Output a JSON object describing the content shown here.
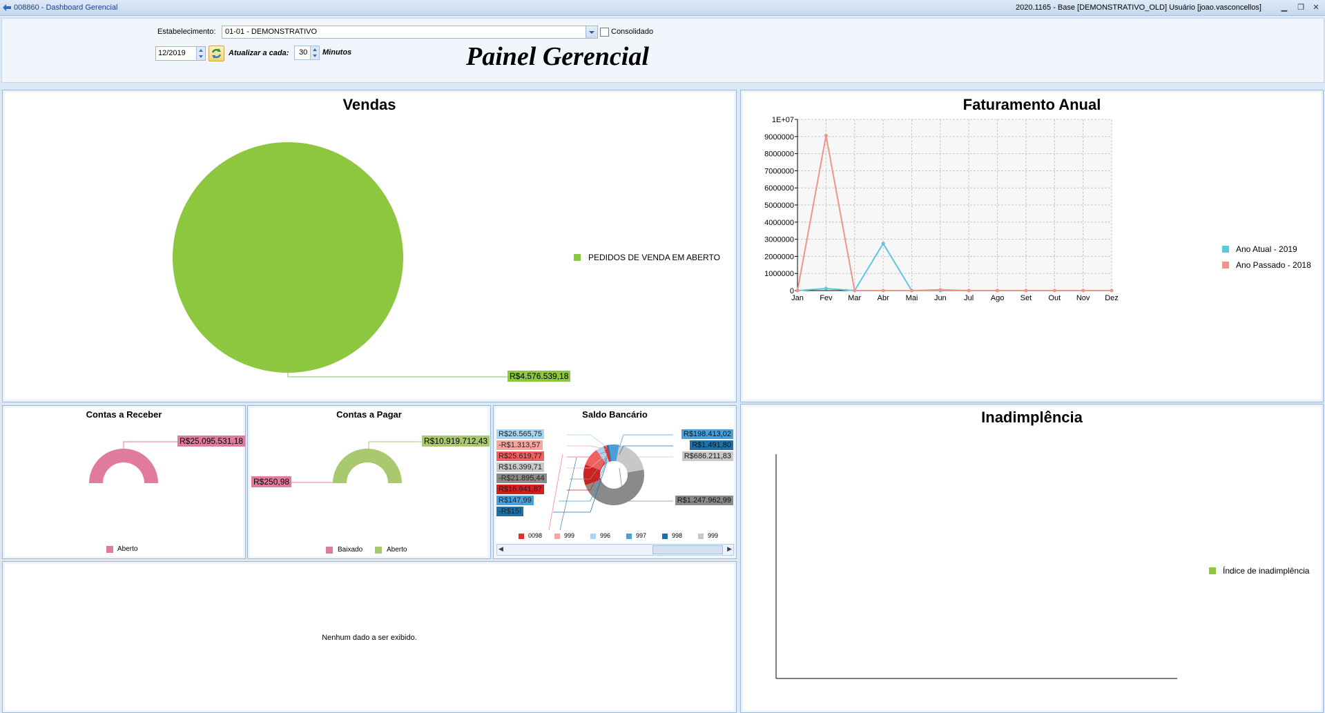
{
  "window": {
    "title": "008860 - Dashboard Gerencial",
    "info": "2020.1165 - Base [DEMONSTRATIVO_OLD] Usuário [joao.vasconcellos]"
  },
  "header": {
    "estabelecimento_label": "Estabelecimento:",
    "estabelecimento_value": "01-01 - DEMONSTRATIVO",
    "consolidado_label": "Consolidado",
    "period_value": "12/2019",
    "atualizar_label": "Atualizar a cada:",
    "atualizar_value": "30",
    "minutos_label": "Minutos",
    "painel_title": "Painel Gerencial"
  },
  "vendas": {
    "title": "Vendas",
    "legend": "PEDIDOS DE VENDA EM ABERTO",
    "color": "#8dc63f",
    "chart_data": {
      "type": "pie",
      "categories": [
        "PEDIDOS DE VENDA EM ABERTO"
      ],
      "values": [
        4576539.18
      ],
      "labels": [
        "R$4.576.539,18"
      ]
    }
  },
  "faturamento": {
    "title": "Faturamento Anual",
    "colors": {
      "atual": "#5bc8dc",
      "passado": "#f0948a"
    },
    "chart_data": {
      "type": "line",
      "categories": [
        "Jan",
        "Fev",
        "Mar",
        "Abr",
        "Mai",
        "Jun",
        "Jul",
        "Ago",
        "Set",
        "Out",
        "Nov",
        "Dez"
      ],
      "yticks": [
        "0",
        "1000000",
        "2000000",
        "3000000",
        "4000000",
        "5000000",
        "6000000",
        "7000000",
        "8000000",
        "9000000",
        "1E+07"
      ],
      "ylim": [
        0,
        10000000
      ],
      "series": [
        {
          "name": "Ano Atual - 2019",
          "values": [
            0,
            120000,
            0,
            2750000,
            0,
            0,
            0,
            0,
            0,
            0,
            0,
            0
          ]
        },
        {
          "name": "Ano Passado - 2018",
          "values": [
            0,
            9050000,
            0,
            0,
            0,
            50000,
            0,
            0,
            0,
            0,
            0,
            0
          ]
        }
      ],
      "grid": true,
      "legend": "right"
    }
  },
  "contas_receber": {
    "title": "Contas a Receber",
    "legend": "Aberto",
    "color": "#e07b9f",
    "chart_data": {
      "type": "pie",
      "categories": [
        "Aberto"
      ],
      "values": [
        25095531.18
      ],
      "labels": [
        "R$25.095.531,18"
      ]
    }
  },
  "contas_pagar": {
    "title": "Contas a Pagar",
    "legend": [
      "Baixado",
      "Aberto"
    ],
    "colors": [
      "#e07b9f",
      "#a8c96e"
    ],
    "chart_data": {
      "type": "pie",
      "categories": [
        "Baixado",
        "Aberto"
      ],
      "values": [
        250.98,
        10919712.43
      ],
      "labels": [
        "R$250,98",
        "R$10.919.712,43"
      ]
    }
  },
  "saldo_bancario": {
    "title": "Saldo Bancário",
    "left_labels": [
      {
        "text": "R$26.565,75",
        "color": "#a7d4f0"
      },
      {
        "text": "-R$1.313,57",
        "color": "#f7a7a0"
      },
      {
        "text": "R$25.619,77",
        "color": "#f06060"
      },
      {
        "text": "R$16.399,71",
        "color": "#c8c8c8"
      },
      {
        "text": "-R$21.895,44",
        "color": "#8a8a8a"
      },
      {
        "text": "R$16.941,87",
        "color": "#d02020"
      },
      {
        "text": "R$147,99",
        "color": "#4a9fd8"
      },
      {
        "text": "-R$15!",
        "color": "#1f6fa8"
      }
    ],
    "right_labels": [
      {
        "text": "R$198.413,02",
        "color": "#4a9fd8"
      },
      {
        "text": "R$1.491,80",
        "color": "#1f6fa8"
      },
      {
        "text": "R$686.211,83",
        "color": "#c8c8c8"
      },
      {
        "text": "R$1.247.962,99",
        "color": "#8a8a8a"
      }
    ],
    "legend": [
      {
        "text": "0098",
        "color": "#e03030"
      },
      {
        "text": "999",
        "color": "#f7a7a0"
      },
      {
        "text": "996",
        "color": "#a7d4f0"
      },
      {
        "text": "997",
        "color": "#4a9fd8"
      },
      {
        "text": "998",
        "color": "#1f6fa8"
      },
      {
        "text": "999",
        "color": "#c8c8c8"
      }
    ],
    "chart_data": {
      "type": "pie",
      "categories": [
        "R$26.565,75",
        "-R$1.313,57",
        "R$25.619,77",
        "R$16.399,71",
        "-R$21.895,44",
        "R$16.941,87",
        "R$147,99",
        "R$198.413,02",
        "R$1.491,80",
        "R$686.211,83",
        "R$1.247.962,99"
      ],
      "values": [
        26565.75,
        -1313.57,
        25619.77,
        16399.71,
        -21895.44,
        16941.87,
        147.99,
        198413.02,
        1491.8,
        686211.83,
        1247962.99
      ]
    }
  },
  "empty_panel": {
    "message": "Nenhum dado a ser exibido."
  },
  "inadimplencia": {
    "title": "Inadimplência",
    "legend": "Índice de inadimplência",
    "color": "#8dc63f"
  }
}
